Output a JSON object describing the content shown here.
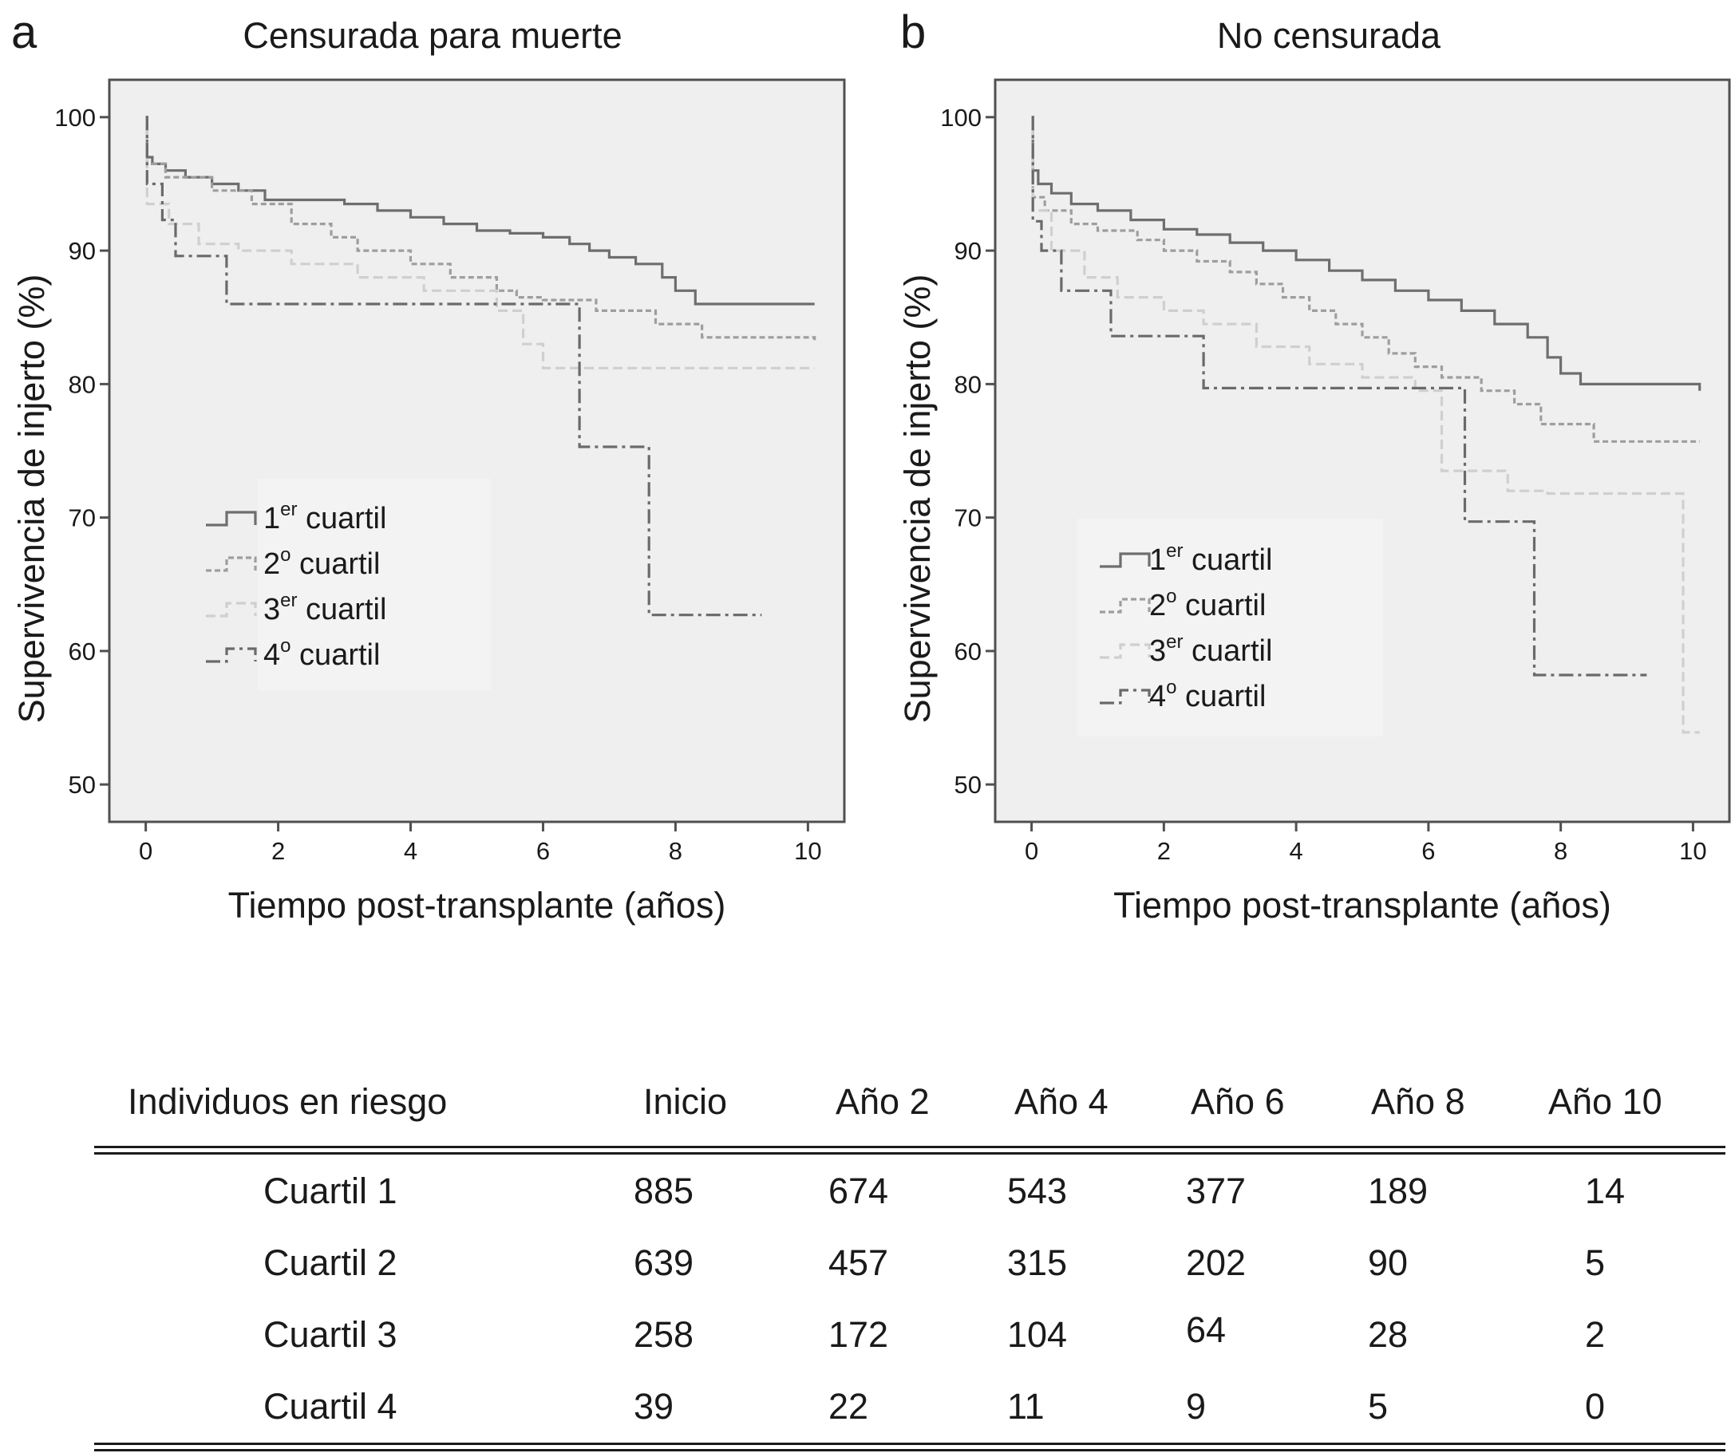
{
  "colors": {
    "q1": "#6e6e6e",
    "q2": "#9e9e9e",
    "q3": "#cfcfcf",
    "q4": "#6a6a6a",
    "plot_background": "#efefef"
  },
  "chart_data": [
    {
      "type": "line",
      "panel_letter": "a",
      "title": "Censurada para muerte",
      "xlabel": "Tiempo post-transplante (años)",
      "ylabel": "Supervivencia de injerto (%)",
      "xlim": [
        -0.55,
        10.55
      ],
      "ylim": [
        47.2,
        102.8
      ],
      "xticks": [
        0,
        2,
        4,
        6,
        8,
        10
      ],
      "yticks": [
        50,
        60,
        70,
        80,
        90,
        100
      ],
      "legend_position": "center-left",
      "series": [
        {
          "name": "1er cuartil",
          "label_main": "1",
          "label_sup": "er",
          "label_rest": " cuartil",
          "style": "solid",
          "color_key": "q1",
          "x": [
            0,
            0.02,
            0.1,
            0.3,
            0.6,
            1.0,
            1.4,
            1.8,
            2.4,
            3.0,
            3.5,
            4.0,
            4.5,
            5.0,
            5.5,
            6.0,
            6.4,
            6.7,
            7.0,
            7.4,
            7.8,
            8.0,
            8.3,
            10.1
          ],
          "y": [
            100,
            97.0,
            96.5,
            96.0,
            95.5,
            95.0,
            94.5,
            93.8,
            93.8,
            93.5,
            93.0,
            92.5,
            92.0,
            91.5,
            91.3,
            91.0,
            90.5,
            90.0,
            89.5,
            89.0,
            88.0,
            87.0,
            86.0,
            86.0
          ]
        },
        {
          "name": "2º cuartil",
          "label_main": "2",
          "label_sup": "o",
          "label_rest": " cuartil",
          "style": "dashed-fine",
          "color_key": "q2",
          "x": [
            0,
            0.02,
            0.3,
            1.0,
            1.6,
            2.2,
            2.8,
            3.2,
            4.0,
            4.6,
            5.3,
            5.6,
            6.0,
            6.8,
            7.7,
            8.4,
            10.1
          ],
          "y": [
            100,
            96.5,
            95.5,
            94.5,
            93.5,
            92.0,
            91.0,
            90.0,
            89.0,
            88.0,
            87.0,
            86.5,
            86.3,
            85.5,
            84.5,
            83.5,
            83.3
          ]
        },
        {
          "name": "3er cuartil",
          "label_main": "3",
          "label_sup": "er",
          "label_rest": " cuartil",
          "style": "dashed-light",
          "color_key": "q3",
          "x": [
            0,
            0.02,
            0.35,
            0.8,
            1.4,
            2.2,
            3.2,
            4.2,
            5.3,
            5.7,
            6.0,
            6.8,
            10.1
          ],
          "y": [
            100,
            93.5,
            92.0,
            90.5,
            90.0,
            89.0,
            88.0,
            87.0,
            85.5,
            83.0,
            81.2,
            81.2,
            81.2
          ]
        },
        {
          "name": "4º cuartil",
          "label_main": "4",
          "label_sup": "o",
          "label_rest": " cuartil",
          "style": "dashdot",
          "color_key": "q4",
          "x": [
            0,
            0.02,
            0.25,
            0.45,
            1.22,
            6.55,
            7.6,
            9.3
          ],
          "y": [
            100,
            95.0,
            92.3,
            89.6,
            86.0,
            75.3,
            62.7,
            62.7
          ]
        }
      ]
    },
    {
      "type": "line",
      "panel_letter": "b",
      "title": "No censurada",
      "xlabel": "Tiempo post-transplante (años)",
      "ylabel": "Supervivencia de injerto (%)",
      "xlim": [
        -0.55,
        10.55
      ],
      "ylim": [
        47.2,
        102.8
      ],
      "xticks": [
        0,
        2,
        4,
        6,
        8,
        10
      ],
      "yticks": [
        50,
        60,
        70,
        80,
        90,
        100
      ],
      "legend_position": "center-left",
      "series": [
        {
          "name": "1er cuartil",
          "label_main": "1",
          "label_sup": "er",
          "label_rest": " cuartil",
          "style": "solid",
          "color_key": "q1",
          "x": [
            0,
            0.02,
            0.1,
            0.3,
            0.6,
            1.0,
            1.5,
            2.0,
            2.5,
            3.0,
            3.5,
            4.0,
            4.5,
            5.0,
            5.5,
            6.0,
            6.5,
            7.0,
            7.5,
            7.8,
            8.0,
            8.3,
            10.1
          ],
          "y": [
            100,
            96.0,
            95.0,
            94.3,
            93.5,
            93.0,
            92.3,
            91.6,
            91.2,
            90.6,
            90.0,
            89.3,
            88.5,
            87.8,
            87.0,
            86.3,
            85.5,
            84.5,
            83.5,
            82.0,
            80.8,
            80.0,
            79.5
          ]
        },
        {
          "name": "2º cuartil",
          "label_main": "2",
          "label_sup": "o",
          "label_rest": " cuartil",
          "style": "dashed-fine",
          "color_key": "q2",
          "x": [
            0,
            0.02,
            0.2,
            0.6,
            1.0,
            1.6,
            2.0,
            2.5,
            3.0,
            3.4,
            3.8,
            4.2,
            4.6,
            5.0,
            5.4,
            5.8,
            6.2,
            6.8,
            7.3,
            7.7,
            8.5,
            10.1
          ],
          "y": [
            100,
            94.0,
            93.0,
            92.0,
            91.5,
            90.8,
            90.0,
            89.2,
            88.4,
            87.5,
            86.5,
            85.5,
            84.5,
            83.5,
            82.3,
            81.3,
            80.5,
            79.5,
            78.5,
            77.0,
            75.7,
            75.7
          ]
        },
        {
          "name": "3er cuartil",
          "label_main": "3",
          "label_sup": "er",
          "label_rest": " cuartil",
          "style": "dashed-light",
          "color_key": "q3",
          "x": [
            0,
            0.02,
            0.3,
            0.8,
            1.3,
            2.0,
            2.6,
            3.4,
            4.2,
            5.0,
            5.8,
            6.2,
            6.6,
            7.2,
            7.8,
            9.0,
            9.85,
            10.1
          ],
          "y": [
            100,
            93.0,
            90.0,
            88.0,
            86.5,
            85.5,
            84.5,
            82.8,
            81.5,
            80.5,
            79.5,
            73.5,
            73.5,
            72.0,
            71.8,
            71.8,
            53.9,
            53.9
          ]
        },
        {
          "name": "4º cuartil",
          "label_main": "4",
          "label_sup": "o",
          "label_rest": " cuartil",
          "style": "dashdot",
          "color_key": "q4",
          "x": [
            0,
            0.02,
            0.15,
            0.45,
            1.2,
            2.6,
            6.55,
            7.6,
            9.3
          ],
          "y": [
            100,
            92.2,
            90.0,
            87.0,
            83.6,
            79.7,
            69.7,
            58.2,
            58.2
          ]
        }
      ]
    }
  ],
  "risk_table": {
    "title": "Individuos en riesgo",
    "columns": [
      "Inicio",
      "Año 2",
      "Año 4",
      "Año 6",
      "Año 8",
      "Año 10"
    ],
    "rows": [
      {
        "label": "Cuartil 1",
        "values": [
          "885",
          "674",
          "543",
          "377",
          "189",
          "14"
        ]
      },
      {
        "label": "Cuartil 2",
        "values": [
          "639",
          "457",
          "315",
          "202",
          "90",
          "5"
        ]
      },
      {
        "label": "Cuartil 3",
        "values": [
          "258",
          "172",
          "104",
          "64",
          "28",
          "2"
        ]
      },
      {
        "label": "Cuartil 4",
        "values": [
          "39",
          "22",
          "11",
          "9",
          "5",
          "0"
        ]
      }
    ]
  }
}
